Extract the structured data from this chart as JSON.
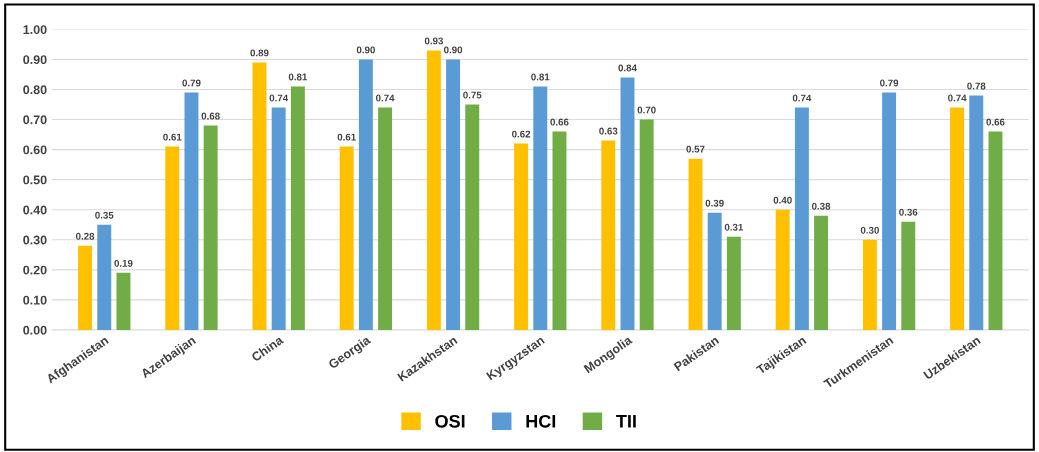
{
  "chart_data": {
    "type": "bar",
    "categories": [
      "Afghanistan",
      "Azerbaijan",
      "China",
      "Georgia",
      "Kazakhstan",
      "Kyrgyzstan",
      "Mongolia",
      "Pakistan",
      "Tajikistan",
      "Turkmenistan",
      "Uzbekistan"
    ],
    "series": [
      {
        "name": "OSI",
        "color": "#ffc000",
        "values": [
          0.28,
          0.61,
          0.89,
          0.61,
          0.93,
          0.62,
          0.63,
          0.57,
          0.4,
          0.3,
          0.74
        ],
        "value_labels": [
          "0.28",
          "0.61",
          "0.89",
          "0.61",
          "0.93",
          "0.62",
          "0.63",
          "0.57",
          "0.40",
          "0.30",
          "0.74"
        ]
      },
      {
        "name": "HCI",
        "color": "#5b9bd5",
        "values": [
          0.35,
          0.79,
          0.74,
          0.9,
          0.9,
          0.81,
          0.84,
          0.39,
          0.74,
          0.79,
          0.78
        ],
        "value_labels": [
          "0.35",
          "0.79",
          "0.74",
          "0.90",
          "0.90",
          "0.81",
          "0.84",
          "0.39",
          "0.74",
          "0.79",
          "0.78"
        ]
      },
      {
        "name": "TII",
        "color": "#70ad47",
        "values": [
          0.19,
          0.68,
          0.81,
          0.74,
          0.75,
          0.66,
          0.7,
          0.31,
          0.38,
          0.36,
          0.66
        ],
        "value_labels": [
          "0.19",
          "0.68",
          "0.81",
          "0.74",
          "0.75",
          "0.66",
          "0.70",
          "0.31",
          "0.38",
          "0.36",
          "0.66"
        ]
      }
    ],
    "ylim": [
      0,
      1
    ],
    "yticks": [
      {
        "value": 0,
        "label": "0.00"
      },
      {
        "value": 0.1,
        "label": "0.10"
      },
      {
        "value": 0.2,
        "label": "0.20"
      },
      {
        "value": 0.3,
        "label": "0.30"
      },
      {
        "value": 0.4,
        "label": "0.40"
      },
      {
        "value": 0.5,
        "label": "0.50"
      },
      {
        "value": 0.6,
        "label": "0.60"
      },
      {
        "value": 0.7,
        "label": "0.70"
      },
      {
        "value": 0.8,
        "label": "0.80"
      },
      {
        "value": 0.9,
        "label": "0.90"
      },
      {
        "value": 1,
        "label": "1.00"
      }
    ],
    "grid": "y",
    "legend": "bottom"
  }
}
